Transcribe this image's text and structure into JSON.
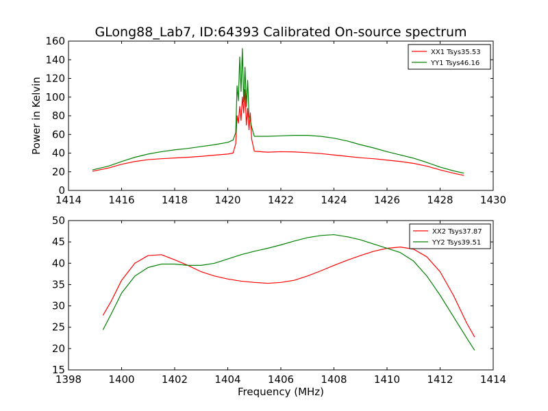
{
  "title": "GLong88_Lab7, ID:64393 Calibrated On-source spectrum",
  "colors": {
    "xx": "#ff0000",
    "yy": "#008000"
  },
  "chart_data": [
    {
      "type": "line",
      "title": "GLong88_Lab7, ID:64393 Calibrated On-source spectrum",
      "xlabel": "",
      "ylabel": "Power in Kelvin",
      "xlim": [
        1414,
        1430
      ],
      "ylim": [
        0,
        160
      ],
      "xticks": [
        1414,
        1416,
        1418,
        1420,
        1422,
        1424,
        1426,
        1428,
        1430
      ],
      "yticks": [
        0,
        20,
        40,
        60,
        80,
        100,
        120,
        140,
        160
      ],
      "legend": "top-right",
      "grid": false,
      "series": [
        {
          "name": "XX1 Tsys35.53",
          "color": "#ff0000",
          "points": [
            [
              1414.9,
              20.5
            ],
            [
              1415.5,
              24
            ],
            [
              1416.0,
              28
            ],
            [
              1416.5,
              31
            ],
            [
              1417.0,
              33
            ],
            [
              1417.5,
              34
            ],
            [
              1418.0,
              34.8
            ],
            [
              1418.5,
              35.5
            ],
            [
              1419.0,
              36.5
            ],
            [
              1419.5,
              37.8
            ],
            [
              1420.0,
              39
            ],
            [
              1420.2,
              40
            ],
            [
              1420.3,
              50
            ],
            [
              1420.35,
              80
            ],
            [
              1420.4,
              72
            ],
            [
              1420.45,
              90
            ],
            [
              1420.5,
              75
            ],
            [
              1420.55,
              100
            ],
            [
              1420.6,
              83
            ],
            [
              1420.65,
              108
            ],
            [
              1420.7,
              70
            ],
            [
              1420.75,
              88
            ],
            [
              1420.8,
              65
            ],
            [
              1420.85,
              83
            ],
            [
              1420.9,
              55
            ],
            [
              1421.0,
              42
            ],
            [
              1421.5,
              41
            ],
            [
              1422.0,
              41.5
            ],
            [
              1422.5,
              41.3
            ],
            [
              1423.0,
              40.5
            ],
            [
              1423.5,
              39.5
            ],
            [
              1424.0,
              38
            ],
            [
              1424.5,
              36.5
            ],
            [
              1425.0,
              35
            ],
            [
              1425.5,
              34
            ],
            [
              1426.0,
              32.5
            ],
            [
              1426.5,
              31
            ],
            [
              1427.0,
              29
            ],
            [
              1427.5,
              26
            ],
            [
              1428.0,
              22
            ],
            [
              1428.5,
              18.5
            ],
            [
              1428.9,
              16
            ]
          ]
        },
        {
          "name": "YY1 Tsys46.16",
          "color": "#008000",
          "points": [
            [
              1414.9,
              22
            ],
            [
              1415.5,
              26
            ],
            [
              1416.0,
              31
            ],
            [
              1416.5,
              35.5
            ],
            [
              1417.0,
              39
            ],
            [
              1417.5,
              41.5
            ],
            [
              1418.0,
              43.5
            ],
            [
              1418.5,
              45
            ],
            [
              1419.0,
              47
            ],
            [
              1419.5,
              49
            ],
            [
              1420.0,
              51.5
            ],
            [
              1420.2,
              54
            ],
            [
              1420.3,
              62
            ],
            [
              1420.35,
              112
            ],
            [
              1420.4,
              96
            ],
            [
              1420.45,
              143
            ],
            [
              1420.5,
              106
            ],
            [
              1420.55,
              152
            ],
            [
              1420.6,
              95
            ],
            [
              1420.65,
              132
            ],
            [
              1420.7,
              90
            ],
            [
              1420.75,
              118
            ],
            [
              1420.8,
              80
            ],
            [
              1420.85,
              75
            ],
            [
              1420.9,
              68
            ],
            [
              1421.0,
              58
            ],
            [
              1421.5,
              58
            ],
            [
              1422.0,
              58.5
            ],
            [
              1422.5,
              59
            ],
            [
              1423.0,
              59
            ],
            [
              1423.5,
              58
            ],
            [
              1424.0,
              56
            ],
            [
              1424.5,
              53
            ],
            [
              1425.0,
              49
            ],
            [
              1425.5,
              45.5
            ],
            [
              1426.0,
              41.5
            ],
            [
              1426.5,
              38
            ],
            [
              1427.0,
              34.5
            ],
            [
              1427.5,
              30
            ],
            [
              1428.0,
              25
            ],
            [
              1428.5,
              21
            ],
            [
              1428.9,
              18.5
            ]
          ]
        }
      ]
    },
    {
      "type": "line",
      "title": "",
      "xlabel": "Frequency (MHz)",
      "ylabel": "",
      "xlim": [
        1398,
        1414
      ],
      "ylim": [
        15,
        50
      ],
      "xticks": [
        1398,
        1400,
        1402,
        1404,
        1406,
        1408,
        1410,
        1412,
        1414
      ],
      "yticks": [
        15,
        20,
        25,
        30,
        35,
        40,
        45,
        50
      ],
      "legend": "top-right",
      "grid": false,
      "series": [
        {
          "name": "XX2 Tsys37.87",
          "color": "#ff0000",
          "points": [
            [
              1399.3,
              27.8
            ],
            [
              1399.6,
              31
            ],
            [
              1400.0,
              36
            ],
            [
              1400.5,
              40
            ],
            [
              1401.0,
              41.8
            ],
            [
              1401.5,
              42
            ],
            [
              1402.0,
              40.8
            ],
            [
              1402.5,
              39.5
            ],
            [
              1403.0,
              38
            ],
            [
              1403.5,
              37
            ],
            [
              1404.0,
              36.3
            ],
            [
              1404.5,
              35.8
            ],
            [
              1405.0,
              35.5
            ],
            [
              1405.5,
              35.3
            ],
            [
              1406.0,
              35.5
            ],
            [
              1406.5,
              36
            ],
            [
              1407.0,
              37
            ],
            [
              1407.5,
              38.2
            ],
            [
              1408.0,
              39.5
            ],
            [
              1408.5,
              40.7
            ],
            [
              1409.0,
              41.8
            ],
            [
              1409.5,
              42.8
            ],
            [
              1410.0,
              43.5
            ],
            [
              1410.5,
              43.8
            ],
            [
              1411.0,
              43.3
            ],
            [
              1411.5,
              41.5
            ],
            [
              1412.0,
              38
            ],
            [
              1412.5,
              32.5
            ],
            [
              1413.0,
              26
            ],
            [
              1413.3,
              22.7
            ]
          ]
        },
        {
          "name": "YY2 Tsys39.51",
          "color": "#008000",
          "points": [
            [
              1399.3,
              24.4
            ],
            [
              1399.6,
              28
            ],
            [
              1400.0,
              33
            ],
            [
              1400.5,
              37
            ],
            [
              1401.0,
              39
            ],
            [
              1401.5,
              39.8
            ],
            [
              1402.0,
              39.8
            ],
            [
              1402.5,
              39.5
            ],
            [
              1403.0,
              39.5
            ],
            [
              1403.5,
              40
            ],
            [
              1404.0,
              41
            ],
            [
              1404.5,
              42
            ],
            [
              1405.0,
              42.8
            ],
            [
              1405.5,
              43.5
            ],
            [
              1406.0,
              44.3
            ],
            [
              1406.5,
              45.2
            ],
            [
              1407.0,
              46
            ],
            [
              1407.5,
              46.5
            ],
            [
              1408.0,
              46.7
            ],
            [
              1408.5,
              46.2
            ],
            [
              1409.0,
              45.5
            ],
            [
              1409.5,
              44.5
            ],
            [
              1410.0,
              43.5
            ],
            [
              1410.5,
              42.5
            ],
            [
              1411.0,
              40.5
            ],
            [
              1411.5,
              37
            ],
            [
              1412.0,
              32.5
            ],
            [
              1412.5,
              27.5
            ],
            [
              1413.0,
              22.5
            ],
            [
              1413.3,
              19.6
            ]
          ]
        }
      ]
    }
  ]
}
